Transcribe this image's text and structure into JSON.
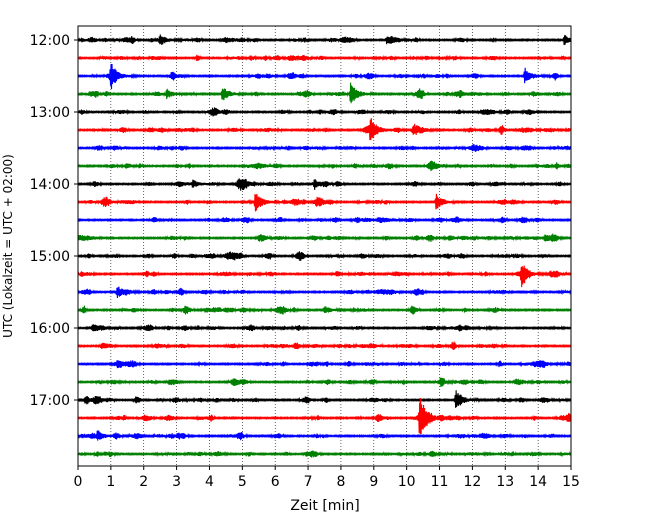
{
  "chart_data": {
    "type": "line",
    "title": "",
    "xlabel": "Zeit  [min]",
    "ylabel": "UTC (Lokalzeit = UTC + 02:00)",
    "xlim": [
      0,
      15
    ],
    "xticks": [
      0,
      1,
      2,
      3,
      4,
      5,
      6,
      7,
      8,
      9,
      10,
      11,
      12,
      13,
      14,
      15
    ],
    "row_start_minutes": 720,
    "row_interval_minutes": 15,
    "ytick_labels": [
      "12:00",
      "13:00",
      "14:00",
      "15:00",
      "16:00",
      "17:00"
    ],
    "ytick_rows": [
      0,
      4,
      8,
      12,
      16,
      20
    ],
    "grid": "vertical dotted",
    "colors": [
      "#000000",
      "#ff0000",
      "#0000ff",
      "#008000"
    ],
    "traces": [
      {
        "row": 0,
        "color": "#000000",
        "events": [
          [
            2.5,
            5
          ],
          [
            9.4,
            4
          ],
          [
            14.8,
            5
          ]
        ]
      },
      {
        "row": 1,
        "color": "#ff0000",
        "events": []
      },
      {
        "row": 2,
        "color": "#0000ff",
        "events": [
          [
            1.0,
            13
          ],
          [
            13.6,
            8
          ]
        ]
      },
      {
        "row": 3,
        "color": "#008000",
        "events": [
          [
            2.7,
            5
          ],
          [
            4.4,
            8
          ],
          [
            8.3,
            12
          ]
        ]
      },
      {
        "row": 4,
        "color": "#000000",
        "events": []
      },
      {
        "row": 5,
        "color": "#ff0000",
        "events": [
          [
            8.9,
            13
          ],
          [
            10.2,
            7
          ]
        ]
      },
      {
        "row": 6,
        "color": "#0000ff",
        "events": []
      },
      {
        "row": 7,
        "color": "#008000",
        "events": []
      },
      {
        "row": 8,
        "color": "#000000",
        "events": [
          [
            3.5,
            4
          ],
          [
            7.2,
            4
          ]
        ]
      },
      {
        "row": 9,
        "color": "#ff0000",
        "events": [
          [
            5.4,
            10
          ],
          [
            10.9,
            8
          ]
        ]
      },
      {
        "row": 10,
        "color": "#0000ff",
        "events": []
      },
      {
        "row": 11,
        "color": "#008000",
        "events": [
          [
            14.2,
            4
          ]
        ]
      },
      {
        "row": 12,
        "color": "#000000",
        "events": []
      },
      {
        "row": 13,
        "color": "#ff0000",
        "events": [
          [
            13.5,
            11
          ]
        ]
      },
      {
        "row": 14,
        "color": "#0000ff",
        "events": [
          [
            1.2,
            6
          ]
        ]
      },
      {
        "row": 15,
        "color": "#008000",
        "events": [
          [
            7.5,
            4
          ]
        ]
      },
      {
        "row": 16,
        "color": "#000000",
        "events": []
      },
      {
        "row": 17,
        "color": "#ff0000",
        "events": []
      },
      {
        "row": 18,
        "color": "#0000ff",
        "events": []
      },
      {
        "row": 19,
        "color": "#008000",
        "events": []
      },
      {
        "row": 20,
        "color": "#000000",
        "events": [
          [
            11.5,
            11
          ]
        ]
      },
      {
        "row": 21,
        "color": "#ff0000",
        "events": [
          [
            10.4,
            21
          ]
        ]
      },
      {
        "row": 22,
        "color": "#0000ff",
        "events": [
          [
            0.6,
            5
          ]
        ]
      },
      {
        "row": 23,
        "color": "#008000",
        "events": []
      }
    ]
  }
}
